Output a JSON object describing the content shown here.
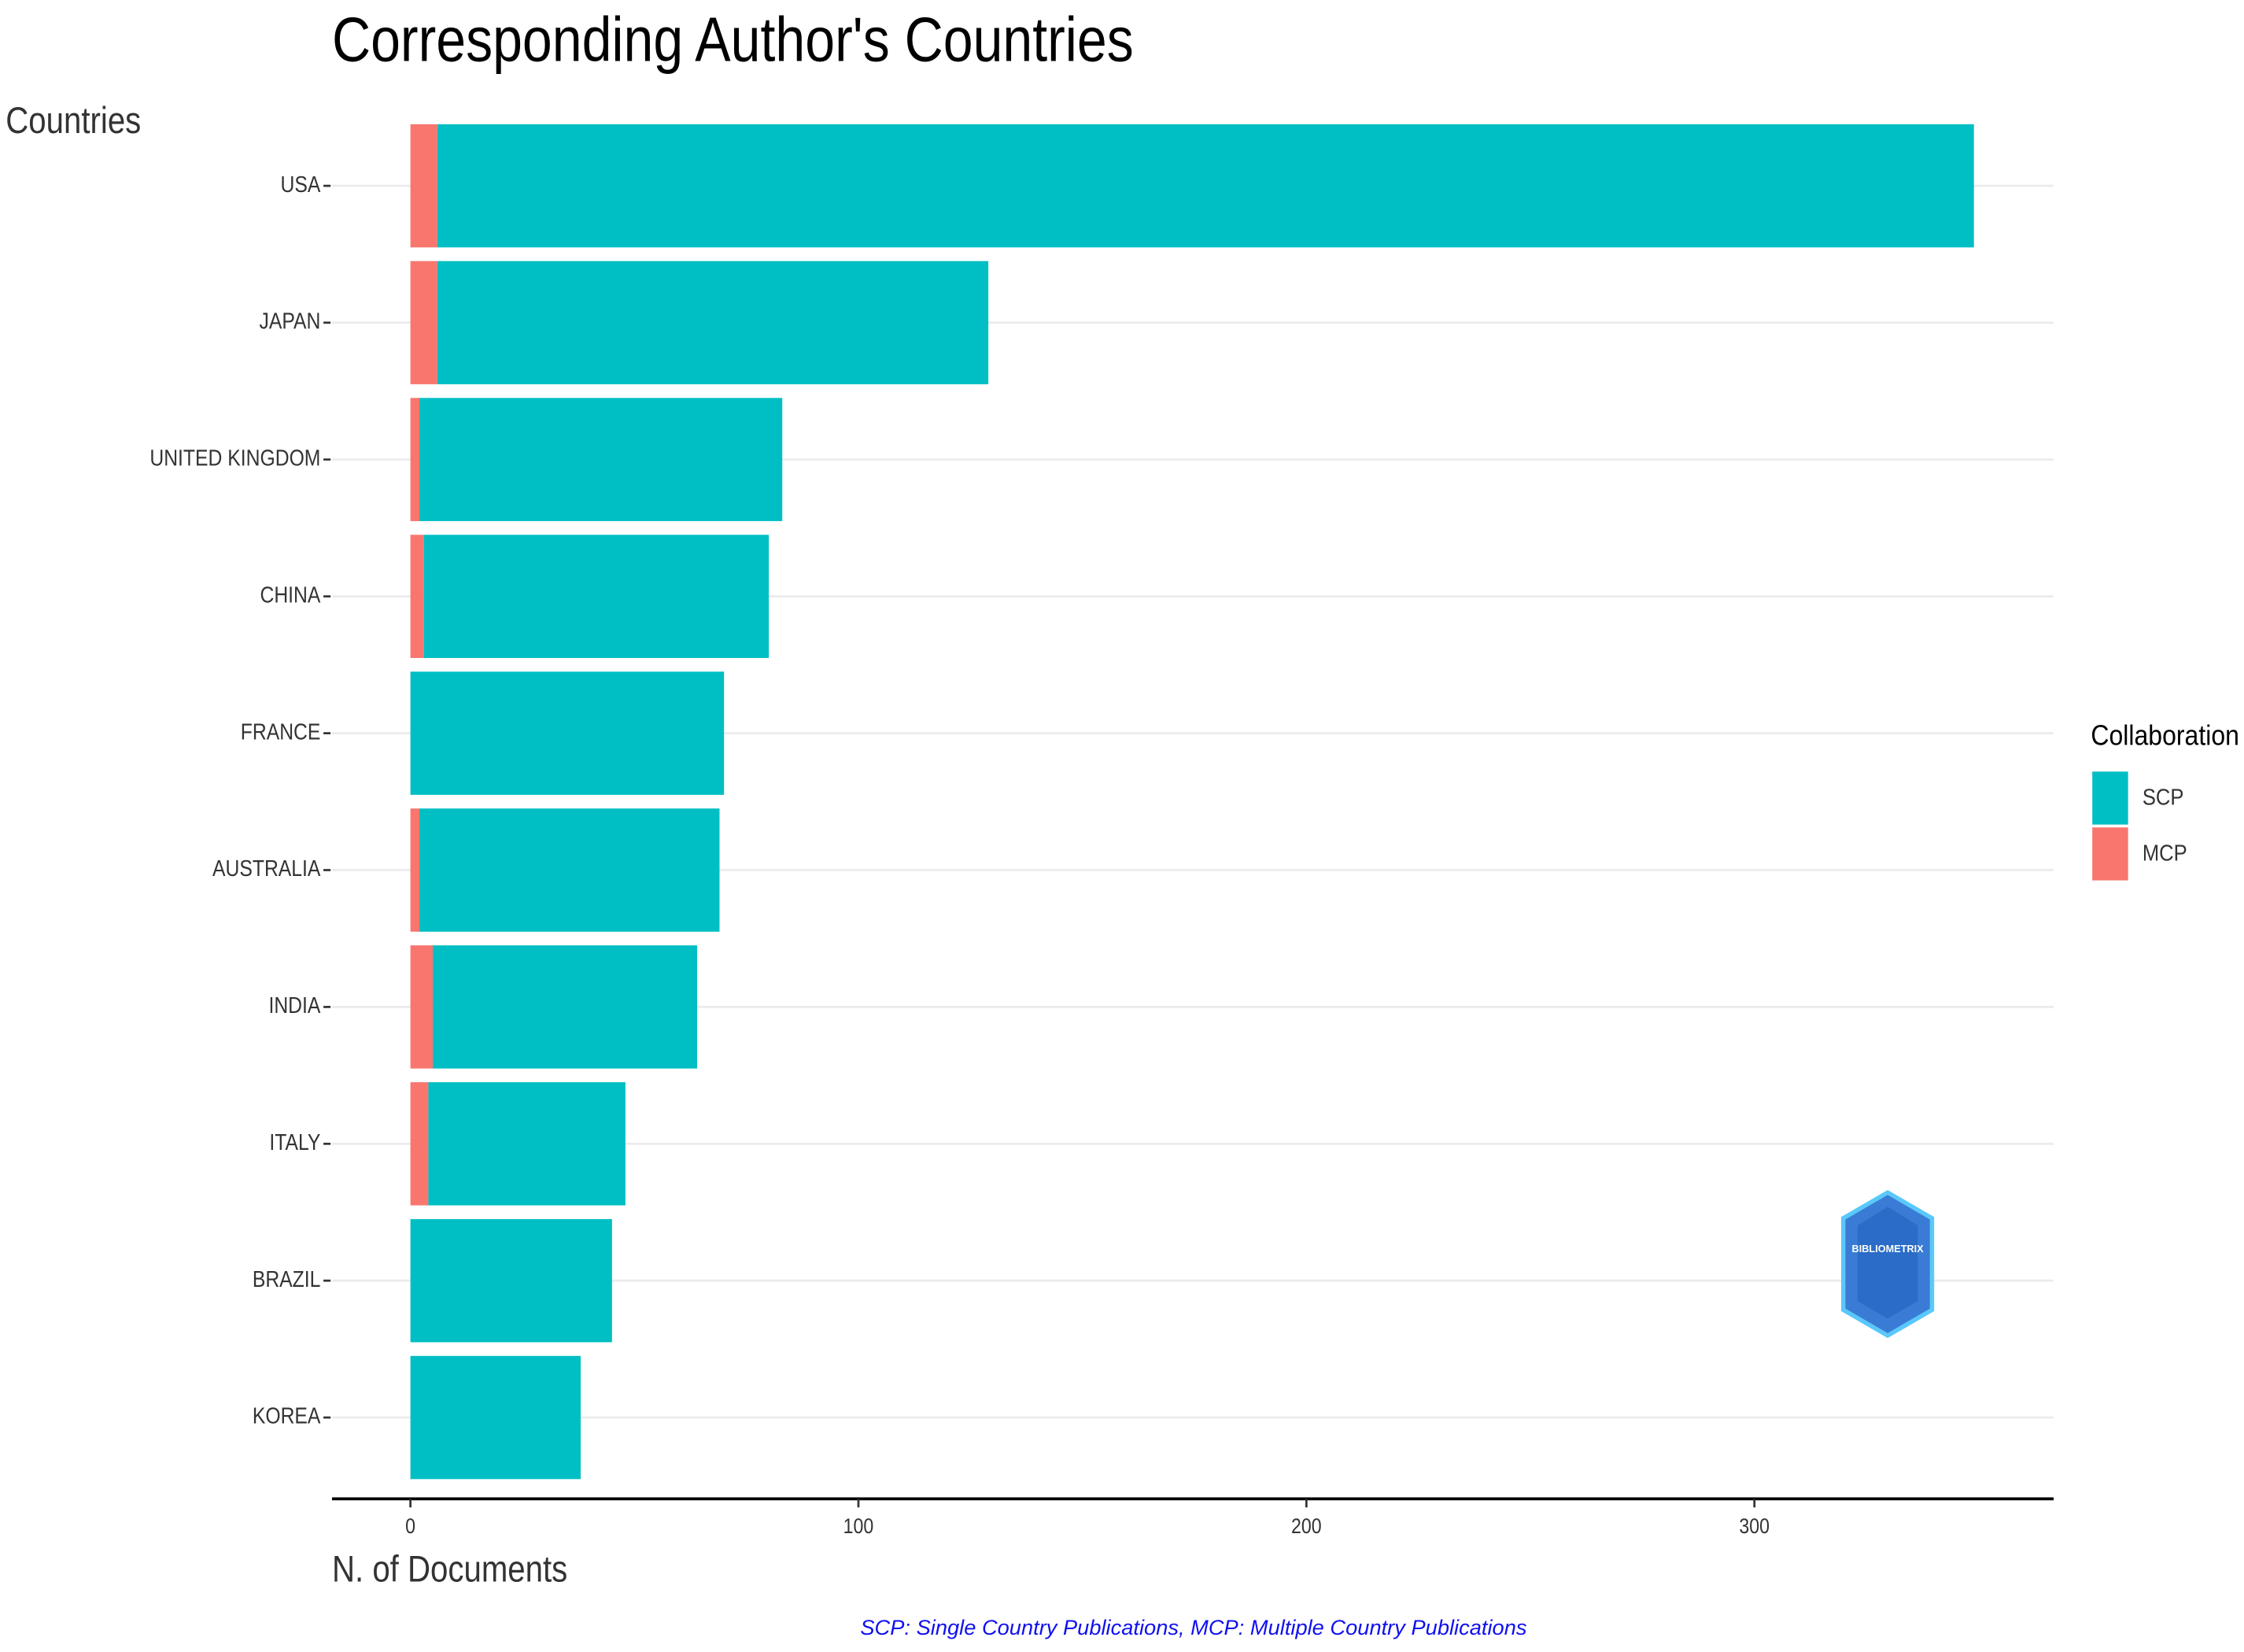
{
  "chart_data": {
    "type": "stacked-bar-horizontal",
    "title": "Corresponding Author's Countries",
    "y_label": "Countries",
    "x_label": "N. of Documents",
    "caption": "SCP: Single Country Publications, MCP: Multiple Country Publications",
    "legend_title": "Collaboration",
    "legend": "right",
    "watermark": "BIBLIOMETRIX",
    "categories": [
      "USA",
      "JAPAN",
      "UNITED KINGDOM",
      "CHINA",
      "FRANCE",
      "AUSTRALIA",
      "INDIA",
      "ITALY",
      "BRAZIL",
      "KOREA"
    ],
    "series": [
      {
        "name": "SCP",
        "color": "#00bfc4",
        "values": [
          343,
          123,
          81,
          77,
          70,
          67,
          59,
          44,
          45,
          38
        ]
      },
      {
        "name": "MCP",
        "color": "#f8766d",
        "values": [
          6,
          6,
          2,
          3,
          0,
          2,
          5,
          4,
          0,
          0
        ]
      }
    ],
    "xlim": [
      -17.5,
      366.8
    ],
    "xticks": [
      0,
      100,
      200,
      300
    ],
    "grid": true
  }
}
